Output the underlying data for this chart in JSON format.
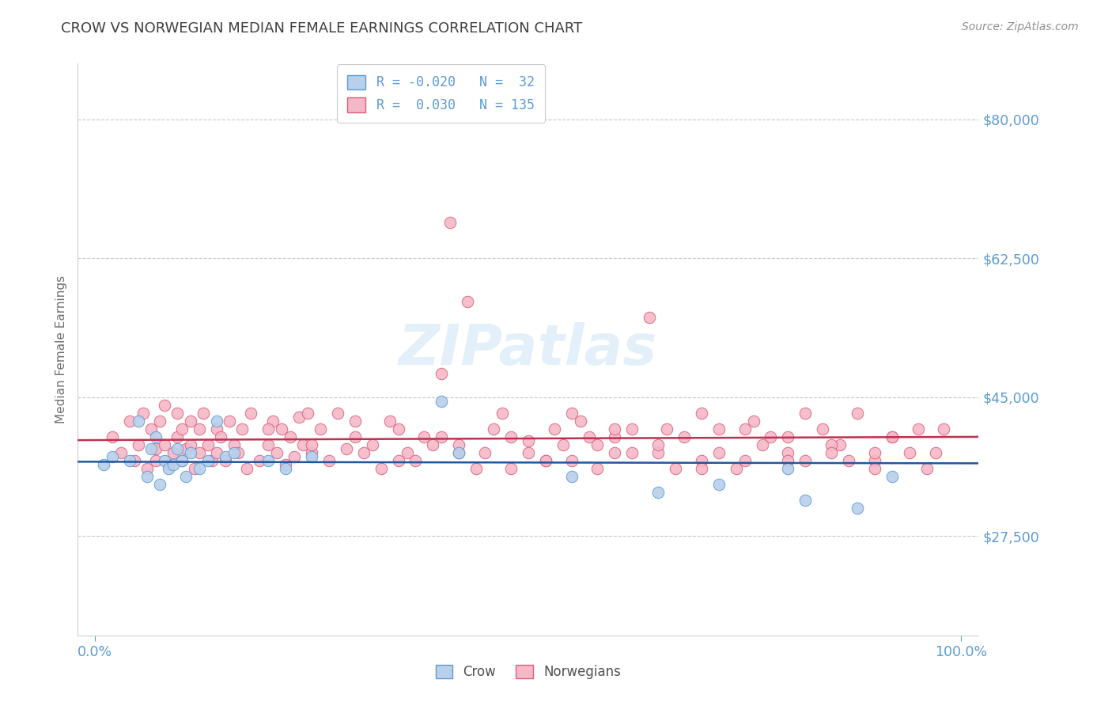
{
  "title": "CROW VS NORWEGIAN MEDIAN FEMALE EARNINGS CORRELATION CHART",
  "source_text": "Source: ZipAtlas.com",
  "ylabel": "Median Female Earnings",
  "xlim": [
    -0.02,
    1.02
  ],
  "ylim": [
    15000,
    87000
  ],
  "yticks": [
    27500,
    45000,
    62500,
    80000
  ],
  "ytick_labels": [
    "$27,500",
    "$45,000",
    "$62,500",
    "$80,000"
  ],
  "xticks": [
    0.0,
    1.0
  ],
  "xtick_labels": [
    "0.0%",
    "100.0%"
  ],
  "crow_color": "#b8d0ea",
  "crow_edge_color": "#5b9bd5",
  "norwegian_color": "#f4b8c8",
  "norwegian_edge_color": "#d9607a",
  "trend_crow_color": "#2255a0",
  "trend_norwegian_color": "#c03050",
  "watermark_text": "ZIPatlas",
  "background_color": "#ffffff",
  "grid_color": "#c8c8c8",
  "title_color": "#404040",
  "tick_color": "#5b9bd5",
  "ylabel_color": "#707070",
  "source_color": "#909090",
  "crow_R": -0.02,
  "crow_N": 32,
  "norwegian_R": 0.03,
  "norwegian_N": 135,
  "crow_x": [
    0.01,
    0.02,
    0.04,
    0.05,
    0.06,
    0.065,
    0.07,
    0.075,
    0.08,
    0.085,
    0.09,
    0.095,
    0.1,
    0.105,
    0.11,
    0.12,
    0.13,
    0.14,
    0.15,
    0.16,
    0.2,
    0.22,
    0.25,
    0.4,
    0.42,
    0.55,
    0.65,
    0.72,
    0.8,
    0.82,
    0.88,
    0.92
  ],
  "crow_y": [
    36500,
    37500,
    37000,
    42000,
    35000,
    38500,
    40000,
    34000,
    37000,
    36000,
    36500,
    38500,
    37000,
    35000,
    38000,
    36000,
    37000,
    42000,
    37500,
    38000,
    37000,
    36000,
    37500,
    44500,
    38000,
    35000,
    33000,
    34000,
    36000,
    32000,
    31000,
    35000
  ],
  "norw_x": [
    0.02,
    0.03,
    0.04,
    0.045,
    0.05,
    0.055,
    0.06,
    0.065,
    0.07,
    0.07,
    0.075,
    0.08,
    0.08,
    0.085,
    0.09,
    0.095,
    0.095,
    0.1,
    0.1,
    0.105,
    0.11,
    0.11,
    0.115,
    0.12,
    0.12,
    0.125,
    0.13,
    0.135,
    0.14,
    0.14,
    0.145,
    0.15,
    0.155,
    0.16,
    0.165,
    0.17,
    0.175,
    0.18,
    0.19,
    0.2,
    0.205,
    0.21,
    0.215,
    0.22,
    0.225,
    0.23,
    0.235,
    0.24,
    0.245,
    0.25,
    0.26,
    0.27,
    0.28,
    0.29,
    0.3,
    0.31,
    0.32,
    0.33,
    0.34,
    0.35,
    0.36,
    0.37,
    0.38,
    0.39,
    0.4,
    0.41,
    0.42,
    0.43,
    0.44,
    0.46,
    0.48,
    0.5,
    0.52,
    0.54,
    0.56,
    0.58,
    0.6,
    0.62,
    0.64,
    0.66,
    0.68,
    0.7,
    0.72,
    0.74,
    0.76,
    0.78,
    0.8,
    0.82,
    0.84,
    0.86,
    0.88,
    0.9,
    0.92,
    0.94,
    0.96,
    0.98,
    0.5,
    0.55,
    0.35,
    0.6,
    0.65,
    0.7,
    0.75,
    0.8,
    0.85,
    0.9,
    0.2,
    0.25,
    0.3,
    0.4,
    0.45,
    0.55,
    0.6,
    0.65,
    0.7,
    0.75,
    0.8,
    0.85,
    0.9,
    0.95,
    0.42,
    0.47,
    0.52,
    0.57,
    0.62,
    0.67,
    0.72,
    0.77,
    0.82,
    0.87,
    0.92,
    0.97,
    0.48,
    0.53,
    0.58
  ],
  "norw_y": [
    40000,
    38000,
    42000,
    37000,
    39000,
    43000,
    36000,
    41000,
    38500,
    37000,
    42000,
    39000,
    44000,
    36500,
    38000,
    40000,
    43000,
    37000,
    41000,
    38500,
    39000,
    42000,
    36000,
    41000,
    38000,
    43000,
    39000,
    37000,
    41000,
    38000,
    40000,
    37000,
    42000,
    39000,
    38000,
    41000,
    36000,
    43000,
    37000,
    39000,
    42000,
    38000,
    41000,
    36500,
    40000,
    37500,
    42500,
    39000,
    43000,
    38000,
    41000,
    37000,
    43000,
    38500,
    40000,
    38000,
    39000,
    36000,
    42000,
    41000,
    38000,
    37000,
    40000,
    39000,
    48000,
    67000,
    38000,
    57000,
    36000,
    41000,
    40000,
    38000,
    37000,
    39000,
    42000,
    36000,
    38000,
    41000,
    55000,
    41000,
    40000,
    37000,
    38000,
    36000,
    42000,
    40000,
    38000,
    37000,
    41000,
    39000,
    43000,
    37000,
    40000,
    38000,
    36000,
    41000,
    39500,
    43000,
    37000,
    40000,
    38000,
    36000,
    41000,
    37000,
    39000,
    38000,
    41000,
    39000,
    42000,
    40000,
    38000,
    37000,
    41000,
    39000,
    43000,
    37000,
    40000,
    38000,
    36000,
    41000,
    39000,
    43000,
    37000,
    40000,
    38000,
    36000,
    41000,
    39000,
    43000,
    37000,
    40000,
    38000,
    36000,
    41000,
    39000
  ]
}
